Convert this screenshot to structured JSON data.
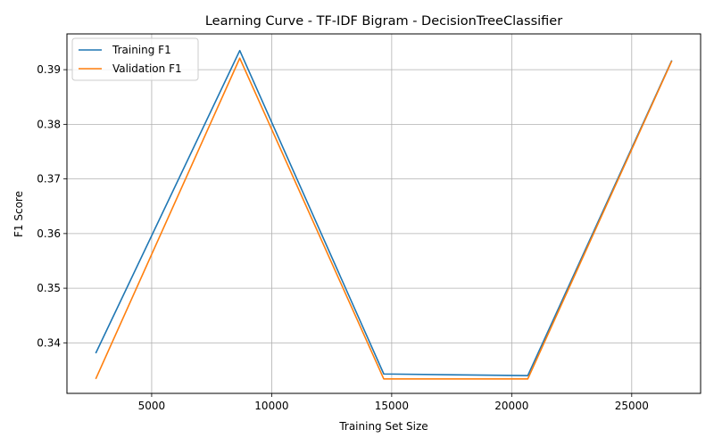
{
  "chart_data": {
    "type": "line",
    "title": "Learning Curve - TF-IDF Bigram - DecisionTreeClassifier",
    "xlabel": "Training Set Size",
    "ylabel": "F1 Score",
    "x": [
      2670,
      8670,
      14670,
      20670,
      26670
    ],
    "xlim": [
      1470,
      27870
    ],
    "ylim": [
      0.33075,
      0.39655
    ],
    "xticks": [
      5000,
      10000,
      15000,
      20000,
      25000
    ],
    "xtick_labels": [
      "5000",
      "10000",
      "15000",
      "20000",
      "25000"
    ],
    "yticks": [
      0.34,
      0.35,
      0.36,
      0.37,
      0.38,
      0.39
    ],
    "ytick_labels": [
      "0.34",
      "0.35",
      "0.36",
      "0.37",
      "0.38",
      "0.39"
    ],
    "grid": true,
    "legend_position": "top-left",
    "series": [
      {
        "name": "Training F1",
        "color": "#1f77b4",
        "values": [
          0.3381,
          0.3935,
          0.3343,
          0.334,
          0.3917
        ]
      },
      {
        "name": "Validation F1",
        "color": "#ff7f0e",
        "values": [
          0.3334,
          0.3921,
          0.3334,
          0.3334,
          0.3916
        ]
      }
    ]
  }
}
